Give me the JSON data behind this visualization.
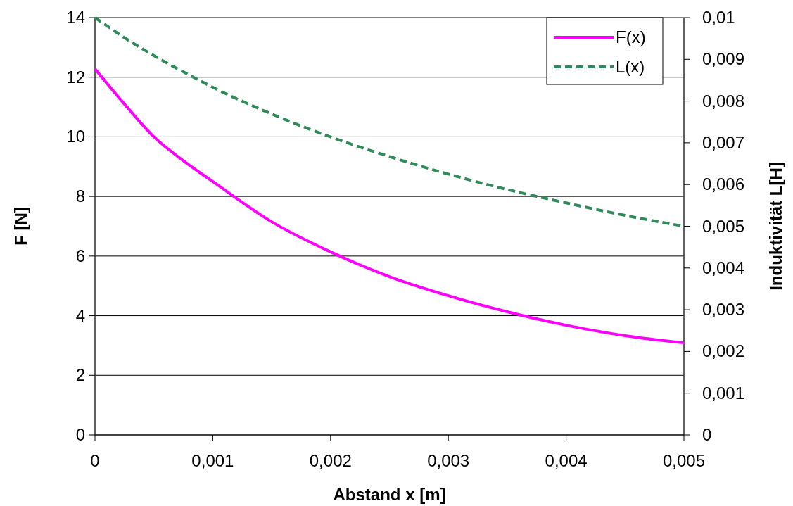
{
  "chart_data": {
    "type": "line",
    "xlabel": "Abstand x [m]",
    "ylabel": "F [N]",
    "y2label": "Induktivität L[H]",
    "x": [
      0,
      0.00025,
      0.0005,
      0.00075,
      0.001,
      0.0015,
      0.002,
      0.0025,
      0.003,
      0.0035,
      0.004,
      0.0045,
      0.005
    ],
    "series": [
      {
        "name": "F(x)",
        "color": "#ff00ff",
        "line_style": "solid",
        "values": [
          12.28,
          11.1,
          10.0,
          9.2,
          8.5,
          7.15,
          6.14,
          5.31,
          4.67,
          4.13,
          3.68,
          3.33,
          3.09
        ]
      },
      {
        "name": "L(x)",
        "color": "#2e8b57",
        "line_style": "dashed",
        "axis": "y2",
        "values": [
          0.01,
          0.00952,
          0.00909,
          0.0087,
          0.00833,
          0.00769,
          0.00714,
          0.00667,
          0.00625,
          0.00588,
          0.00556,
          0.00526,
          0.005
        ]
      }
    ],
    "xlim": [
      0,
      0.005
    ],
    "xticks": [
      {
        "value": 0,
        "label": "0"
      },
      {
        "value": 0.001,
        "label": "0,001"
      },
      {
        "value": 0.002,
        "label": "0,002"
      },
      {
        "value": 0.003,
        "label": "0,003"
      },
      {
        "value": 0.004,
        "label": "0,004"
      },
      {
        "value": 0.005,
        "label": "0,005"
      }
    ],
    "ylim": [
      0,
      14
    ],
    "yticks": [
      0,
      2,
      4,
      6,
      8,
      10,
      12,
      14
    ],
    "y2lim": [
      0,
      0.01
    ],
    "y2ticks": [
      {
        "value": 0,
        "label": "0"
      },
      {
        "value": 0.001,
        "label": "0,001"
      },
      {
        "value": 0.002,
        "label": "0,002"
      },
      {
        "value": 0.003,
        "label": "0,003"
      },
      {
        "value": 0.004,
        "label": "0,004"
      },
      {
        "value": 0.005,
        "label": "0,005"
      },
      {
        "value": 0.006,
        "label": "0,006"
      },
      {
        "value": 0.007,
        "label": "0,007"
      },
      {
        "value": 0.008,
        "label": "0,008"
      },
      {
        "value": 0.009,
        "label": "0,009"
      },
      {
        "value": 0.01,
        "label": "0,01"
      }
    ],
    "grid": "y",
    "legend": "top right"
  }
}
